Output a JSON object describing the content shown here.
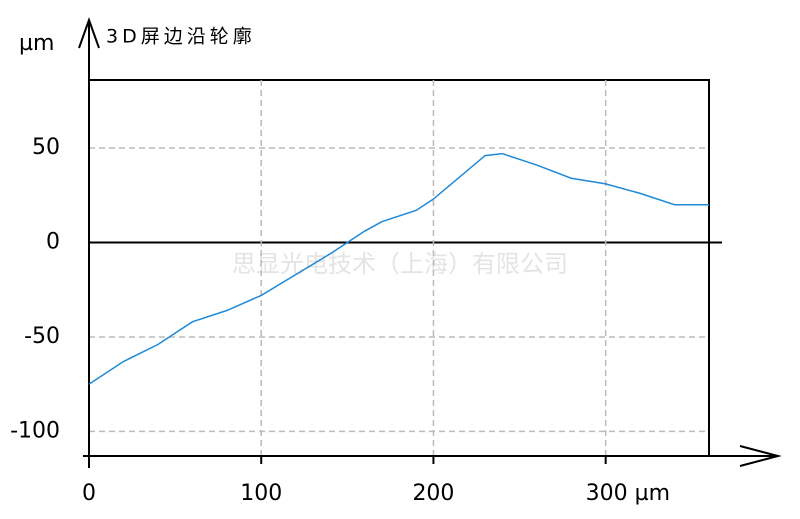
{
  "chart_data": {
    "type": "line",
    "title": "3D屏边沿轮廓",
    "y_label": "µm",
    "watermark": "思显光电技术（上海）有限公司",
    "x": [
      0,
      20,
      40,
      60,
      80,
      100,
      120,
      140,
      150,
      160,
      170,
      190,
      200,
      230,
      240,
      260,
      280,
      300,
      320,
      340,
      360
    ],
    "series": [
      {
        "color": "#1f8ad8",
        "values": [
          -75,
          -63,
          -54,
          -42,
          -36,
          -28,
          -17,
          -6,
          0,
          6,
          11,
          17,
          23,
          46,
          47,
          41,
          34,
          31,
          26,
          20,
          20
        ]
      }
    ],
    "xlim": [
      0,
      360
    ],
    "xticks": [
      0,
      100,
      200,
      {
        "value": 300,
        "label": "300 µm"
      }
    ],
    "ylim": [
      -113,
      86
    ],
    "yticks": [
      -100,
      -50,
      0,
      50
    ],
    "grid": true
  }
}
